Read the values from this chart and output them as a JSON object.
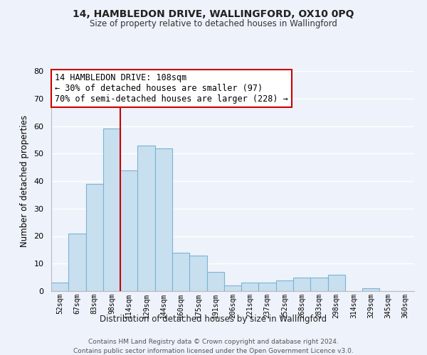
{
  "title": "14, HAMBLEDON DRIVE, WALLINGFORD, OX10 0PQ",
  "subtitle": "Size of property relative to detached houses in Wallingford",
  "xlabel": "Distribution of detached houses by size in Wallingford",
  "ylabel": "Number of detached properties",
  "bar_color": "#c8dff0",
  "bar_edge_color": "#7ab4d4",
  "background_color": "#eef2fa",
  "grid_color": "#ffffff",
  "categories": [
    "52sqm",
    "67sqm",
    "83sqm",
    "98sqm",
    "114sqm",
    "129sqm",
    "144sqm",
    "160sqm",
    "175sqm",
    "191sqm",
    "206sqm",
    "221sqm",
    "237sqm",
    "252sqm",
    "268sqm",
    "283sqm",
    "298sqm",
    "314sqm",
    "329sqm",
    "345sqm",
    "360sqm"
  ],
  "values": [
    3,
    21,
    39,
    59,
    44,
    53,
    52,
    14,
    13,
    7,
    2,
    3,
    3,
    4,
    5,
    5,
    6,
    0,
    1,
    0,
    0
  ],
  "ylim": [
    0,
    80
  ],
  "yticks": [
    0,
    10,
    20,
    30,
    40,
    50,
    60,
    70,
    80
  ],
  "marker_bin_index": 3,
  "annotation_line1": "14 HAMBLEDON DRIVE: 108sqm",
  "annotation_line2": "← 30% of detached houses are smaller (97)",
  "annotation_line3": "70% of semi-detached houses are larger (228) →",
  "footer1": "Contains HM Land Registry data © Crown copyright and database right 2024.",
  "footer2": "Contains public sector information licensed under the Open Government Licence v3.0."
}
